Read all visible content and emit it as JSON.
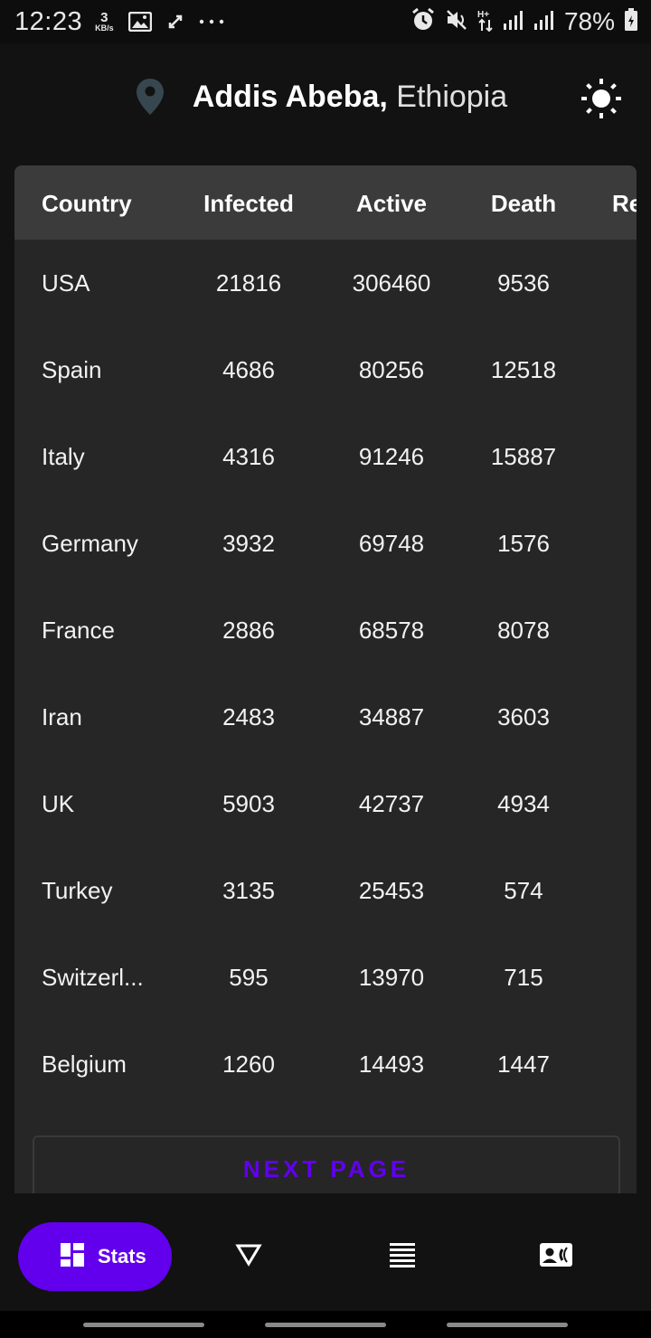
{
  "status_bar": {
    "time": "12:23",
    "speed_value": "3",
    "speed_unit": "KB/s",
    "battery": "78%",
    "icons": [
      "image-icon",
      "sync-icon",
      "more-icon",
      "alarm-icon",
      "mute-icon",
      "data-arrows-icon",
      "signal-icon",
      "signal-icon",
      "battery-icon"
    ]
  },
  "header": {
    "city": "Addis Abeba,",
    "country": "Ethiopia",
    "icons": [
      "location-pin-icon",
      "brightness-icon"
    ]
  },
  "table": {
    "columns": [
      "Country",
      "Infected",
      "Active",
      "Death",
      "Re"
    ],
    "rows": [
      [
        "USA",
        "21816",
        "306460",
        "9536"
      ],
      [
        "Spain",
        "4686",
        "80256",
        "12518"
      ],
      [
        "Italy",
        "4316",
        "91246",
        "15887"
      ],
      [
        "Germany",
        "3932",
        "69748",
        "1576"
      ],
      [
        "France",
        "2886",
        "68578",
        "8078"
      ],
      [
        "Iran",
        "2483",
        "34887",
        "3603"
      ],
      [
        "UK",
        "5903",
        "42737",
        "4934"
      ],
      [
        "Turkey",
        "3135",
        "25453",
        "574"
      ],
      [
        "Switzerl...",
        "595",
        "13970",
        "715"
      ],
      [
        "Belgium",
        "1260",
        "14493",
        "1447"
      ]
    ]
  },
  "next_page_label": "NEXT PAGE",
  "bottom_nav": {
    "active_label": "Stats",
    "icons": [
      "dashboard-icon",
      "triangle-down-icon",
      "list-icon",
      "contact-card-icon"
    ]
  },
  "colors": {
    "accent": "#6200ee",
    "background": "#121212",
    "card": "#262626",
    "header_row": "#3b3b3b",
    "pin": "#37474f"
  }
}
